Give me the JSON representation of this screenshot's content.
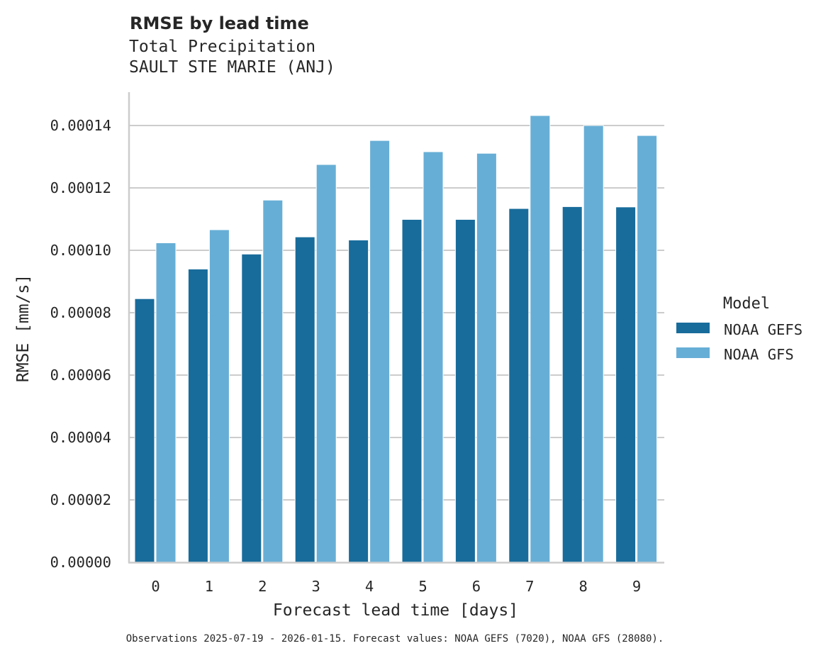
{
  "chart_data": {
    "type": "bar",
    "title": "RMSE by lead time",
    "subtitle_lines": [
      "Total Precipitation",
      "SAULT STE MARIE (ANJ)"
    ],
    "xlabel": "Forecast lead time [days]",
    "ylabel": "RMSE [mm/s]",
    "categories": [
      "0",
      "1",
      "2",
      "3",
      "4",
      "5",
      "6",
      "7",
      "8",
      "9"
    ],
    "series": [
      {
        "name": "NOAA GEFS",
        "color": "#186c9b",
        "values": [
          8.45e-05,
          9.4e-05,
          9.88e-05,
          0.0001043,
          0.0001033,
          0.0001099,
          0.0001099,
          0.0001134,
          0.000114,
          0.0001139
        ]
      },
      {
        "name": "NOAA GFS",
        "color": "#67aed6",
        "values": [
          0.0001024,
          0.0001066,
          0.0001161,
          0.0001275,
          0.0001352,
          0.0001316,
          0.0001311,
          0.0001432,
          0.00014,
          0.0001368
        ]
      }
    ],
    "ylim": [
      0,
      0.000151
    ],
    "yticks": [
      0,
      2e-05,
      4e-05,
      6e-05,
      8e-05,
      0.0001,
      0.00012,
      0.00014
    ],
    "ytick_labels": [
      "0.00000",
      "0.00002",
      "0.00004",
      "0.00006",
      "0.00008",
      "0.00010",
      "0.00012",
      "0.00014"
    ],
    "grid": "y",
    "legend": {
      "title": "Model",
      "position": "right"
    },
    "footnote": "Observations 2025-07-19 - 2026-01-15. Forecast values: NOAA GEFS (7020), NOAA GFS (28080)."
  }
}
